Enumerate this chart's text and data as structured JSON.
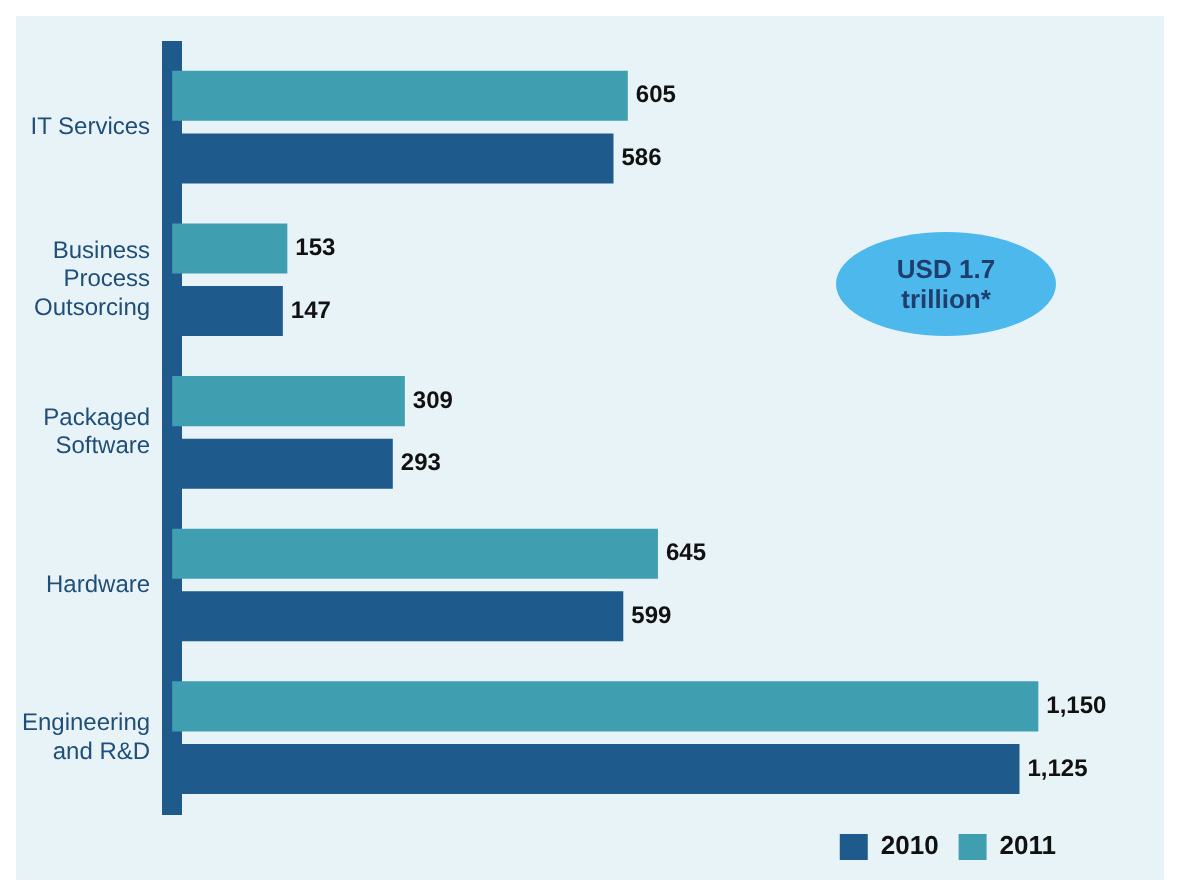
{
  "chart_data": {
    "type": "bar",
    "orientation": "horizontal",
    "categories": [
      "IT Services",
      "Business Process Outsorcing",
      "Packaged Software",
      "Hardware",
      "Engineering and R&D"
    ],
    "series": [
      {
        "name": "2011",
        "color": "#3f9fb0",
        "values": [
          605,
          153,
          309,
          645,
          1150
        ],
        "value_labels": [
          "605",
          "153",
          "309",
          "645",
          "1,150"
        ]
      },
      {
        "name": "2010",
        "color": "#1f5a8c",
        "values": [
          586,
          147,
          293,
          599,
          1125
        ],
        "value_labels": [
          "586",
          "147",
          "293",
          "599",
          "1,125"
        ]
      }
    ],
    "legend": "bottom right",
    "annotations": [
      "USD 1.7 trillion*"
    ]
  }
}
